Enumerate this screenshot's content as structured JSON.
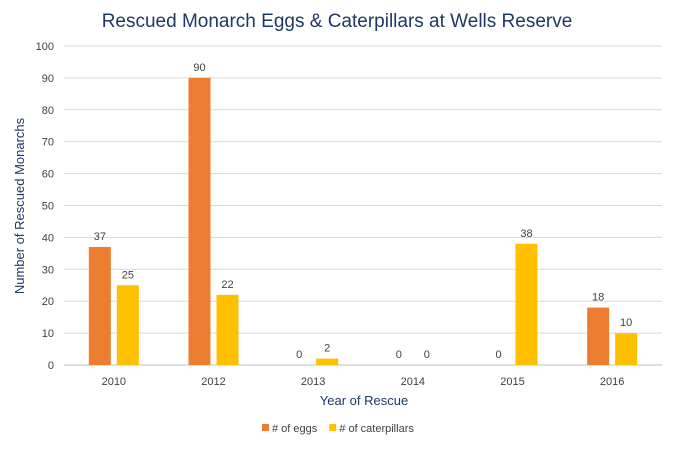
{
  "chart_data": {
    "type": "bar",
    "title": "Rescued Monarch Eggs & Caterpillars at Wells Reserve",
    "xlabel": "Year of Rescue",
    "ylabel": "Number of Rescued Monarchs",
    "categories": [
      "2010",
      "2012",
      "2013",
      "2014",
      "2015",
      "2016"
    ],
    "series": [
      {
        "name": "# of eggs",
        "color": "#ED7D31",
        "values": [
          37,
          90,
          0,
          0,
          0,
          18
        ]
      },
      {
        "name": "# of caterpillars",
        "color": "#FFC000",
        "values": [
          25,
          22,
          2,
          0,
          38,
          10
        ]
      }
    ],
    "ylim": [
      0,
      100
    ],
    "yticks": [
      0,
      10,
      20,
      30,
      40,
      50,
      60,
      70,
      80,
      90,
      100
    ],
    "grid": true,
    "legend": "bottom",
    "data_labels": true
  }
}
